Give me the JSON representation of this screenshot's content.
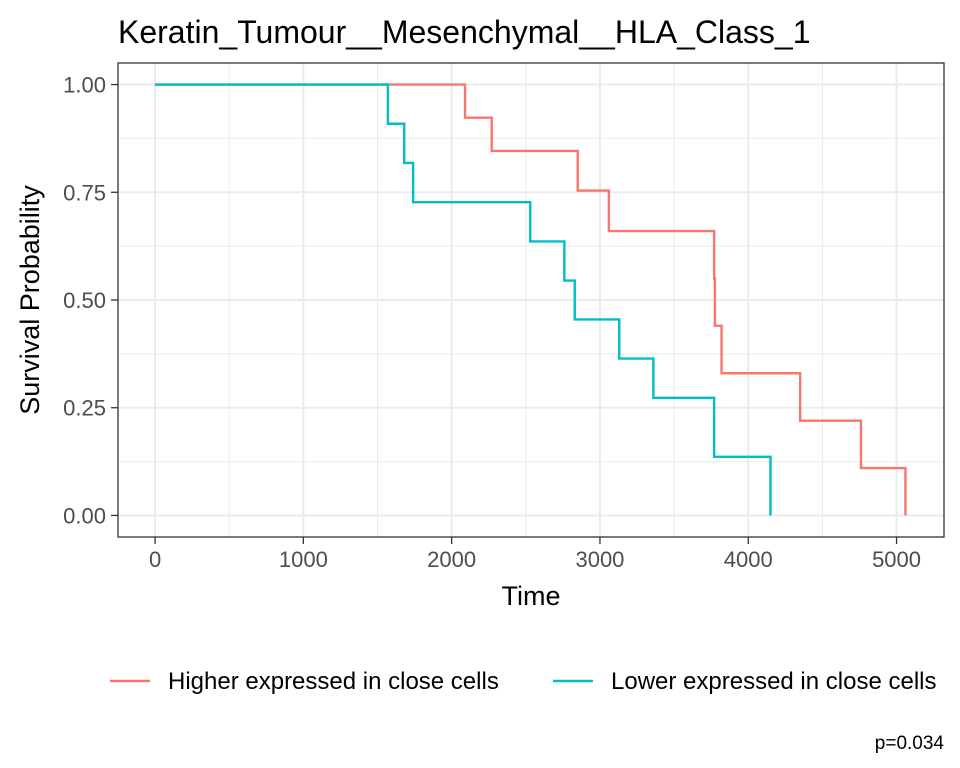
{
  "chart_data": {
    "type": "line",
    "step": true,
    "title": "Keratin_Tumour__Mesenchymal__HLA_Class_1",
    "xlabel": "Time",
    "ylabel": "Survival Probability",
    "xlim": [
      -250,
      5320
    ],
    "ylim": [
      -0.05,
      1.05
    ],
    "x_ticks": [
      0,
      1000,
      2000,
      3000,
      4000,
      5000
    ],
    "x_tick_labels": [
      "0",
      "1000",
      "2000",
      "3000",
      "4000",
      "5000"
    ],
    "y_ticks": [
      0,
      0.25,
      0.5,
      0.75,
      1
    ],
    "y_tick_labels": [
      "0.00",
      "0.25",
      "0.50",
      "0.75",
      "1.00"
    ],
    "grid": true,
    "legend_position": "bottom",
    "annotation": "p=0.034",
    "series": [
      {
        "name": "Higher expressed in close cells",
        "color": "#F8766D",
        "x": [
          0,
          2090,
          2270,
          2850,
          3060,
          3770,
          3775,
          3780,
          3820,
          4350,
          4760,
          5060
        ],
        "y": [
          1.0,
          0.923,
          0.846,
          0.754,
          0.66,
          0.55,
          0.44,
          0.44,
          0.33,
          0.22,
          0.11,
          0.0
        ]
      },
      {
        "name": "Lower expressed in close cells",
        "color": "#00BFC4",
        "x": [
          0,
          1570,
          1680,
          1740,
          2530,
          2760,
          2830,
          3130,
          3360,
          3770,
          4150
        ],
        "y": [
          1.0,
          0.909,
          0.818,
          0.727,
          0.636,
          0.545,
          0.455,
          0.364,
          0.273,
          0.136,
          0.0
        ]
      }
    ]
  }
}
